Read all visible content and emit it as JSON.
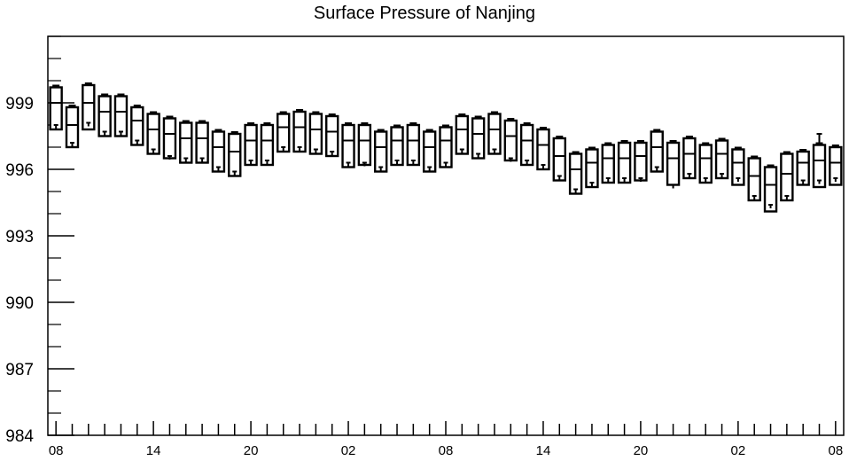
{
  "chart_data": {
    "type": "box",
    "title": "Surface Pressure of Nanjing",
    "xlabel": "",
    "ylabel": "",
    "ylim": [
      984,
      1002
    ],
    "y_ticks": [
      984,
      987,
      990,
      993,
      996,
      999
    ],
    "x_tick_labels": [
      "08",
      "14",
      "20",
      "02",
      "08",
      "14",
      "20",
      "02",
      "08"
    ],
    "x_tick_hours": [
      0,
      6,
      12,
      18,
      24,
      30,
      36,
      42,
      48
    ],
    "x_range": [
      -0.5,
      48.5
    ],
    "grid": false,
    "boxes": [
      {
        "x": 0,
        "upper": 999.7,
        "median": 999.0,
        "lower": 997.8,
        "lowest": 998.0
      },
      {
        "x": 1,
        "upper": 998.8,
        "median": 998.0,
        "lower": 997.0,
        "lowest": 997.2
      },
      {
        "x": 2,
        "upper": 999.8,
        "median": 999.0,
        "lower": 997.8,
        "lowest": 998.1
      },
      {
        "x": 3,
        "upper": 999.3,
        "median": 998.6,
        "lower": 997.5,
        "lowest": 997.7
      },
      {
        "x": 4,
        "upper": 999.3,
        "median": 998.6,
        "lower": 997.5,
        "lowest": 997.7
      },
      {
        "x": 5,
        "upper": 998.8,
        "median": 998.2,
        "lower": 997.1,
        "lowest": 997.3
      },
      {
        "x": 6,
        "upper": 998.5,
        "median": 997.8,
        "lower": 996.7,
        "lowest": 996.9
      },
      {
        "x": 7,
        "upper": 998.3,
        "median": 997.6,
        "lower": 996.5,
        "lowest": 996.6
      },
      {
        "x": 8,
        "upper": 998.1,
        "median": 997.4,
        "lower": 996.3,
        "lowest": 996.5
      },
      {
        "x": 9,
        "upper": 998.1,
        "median": 997.4,
        "lower": 996.3,
        "lowest": 996.5
      },
      {
        "x": 10,
        "upper": 997.7,
        "median": 997.0,
        "lower": 995.9,
        "lowest": 996.1
      },
      {
        "x": 11,
        "upper": 997.6,
        "median": 996.8,
        "lower": 995.7,
        "lowest": 995.9
      },
      {
        "x": 12,
        "upper": 998.0,
        "median": 997.3,
        "lower": 996.2,
        "lowest": 996.4
      },
      {
        "x": 13,
        "upper": 998.0,
        "median": 997.3,
        "lower": 996.2,
        "lowest": 996.4
      },
      {
        "x": 14,
        "upper": 998.5,
        "median": 997.9,
        "lower": 996.8,
        "lowest": 997.0
      },
      {
        "x": 15,
        "upper": 998.6,
        "median": 997.9,
        "lower": 996.8,
        "lowest": 997.0
      },
      {
        "x": 16,
        "upper": 998.5,
        "median": 997.8,
        "lower": 996.7,
        "lowest": 996.9
      },
      {
        "x": 17,
        "upper": 998.4,
        "median": 997.7,
        "lower": 996.6,
        "lowest": 996.8
      },
      {
        "x": 18,
        "upper": 998.0,
        "median": 997.3,
        "lower": 996.1,
        "lowest": 996.3
      },
      {
        "x": 19,
        "upper": 998.0,
        "median": 997.3,
        "lower": 996.2,
        "lowest": 996.3
      },
      {
        "x": 20,
        "upper": 997.7,
        "median": 997.0,
        "lower": 995.9,
        "lowest": 996.1
      },
      {
        "x": 21,
        "upper": 997.9,
        "median": 997.3,
        "lower": 996.2,
        "lowest": 996.4
      },
      {
        "x": 22,
        "upper": 998.0,
        "median": 997.3,
        "lower": 996.2,
        "lowest": 996.4
      },
      {
        "x": 23,
        "upper": 997.7,
        "median": 997.0,
        "lower": 995.9,
        "lowest": 996.1
      },
      {
        "x": 24,
        "upper": 997.9,
        "median": 997.3,
        "lower": 996.1,
        "lowest": 996.3
      },
      {
        "x": 25,
        "upper": 998.4,
        "median": 997.8,
        "lower": 996.7,
        "lowest": 996.9
      },
      {
        "x": 26,
        "upper": 998.3,
        "median": 997.6,
        "lower": 996.5,
        "lowest": 996.7
      },
      {
        "x": 27,
        "upper": 998.5,
        "median": 997.8,
        "lower": 996.7,
        "lowest": 996.9
      },
      {
        "x": 28,
        "upper": 998.2,
        "median": 997.5,
        "lower": 996.4,
        "lowest": 996.5
      },
      {
        "x": 29,
        "upper": 998.0,
        "median": 997.3,
        "lower": 996.2,
        "lowest": 996.4
      },
      {
        "x": 30,
        "upper": 997.8,
        "median": 997.1,
        "lower": 996.0,
        "lowest": 996.2
      },
      {
        "x": 31,
        "upper": 997.4,
        "median": 996.6,
        "lower": 995.5,
        "lowest": 995.7
      },
      {
        "x": 32,
        "upper": 996.7,
        "median": 996.0,
        "lower": 994.9,
        "lowest": 995.1
      },
      {
        "x": 33,
        "upper": 996.9,
        "median": 996.3,
        "lower": 995.2,
        "lowest": 995.4
      },
      {
        "x": 34,
        "upper": 997.1,
        "median": 996.5,
        "lower": 995.4,
        "lowest": 995.6
      },
      {
        "x": 35,
        "upper": 997.2,
        "median": 996.5,
        "lower": 995.4,
        "lowest": 995.6
      },
      {
        "x": 36,
        "upper": 997.2,
        "median": 996.6,
        "lower": 995.5,
        "lowest": 995.6
      },
      {
        "x": 37,
        "upper": 997.7,
        "median": 997.0,
        "lower": 995.9,
        "lowest": 996.1
      },
      {
        "x": 38,
        "upper": 997.2,
        "median": 996.5,
        "lower": 995.3,
        "lowest": 995.3
      },
      {
        "x": 39,
        "upper": 997.4,
        "median": 996.7,
        "lower": 995.6,
        "lowest": 995.8
      },
      {
        "x": 40,
        "upper": 997.1,
        "median": 996.5,
        "lower": 995.4,
        "lowest": 995.6
      },
      {
        "x": 41,
        "upper": 997.3,
        "median": 996.7,
        "lower": 995.6,
        "lowest": 995.8
      },
      {
        "x": 42,
        "upper": 996.9,
        "median": 996.3,
        "lower": 995.3,
        "lowest": 995.6
      },
      {
        "x": 43,
        "upper": 996.5,
        "median": 995.7,
        "lower": 994.6,
        "lowest": 994.8
      },
      {
        "x": 44,
        "upper": 996.1,
        "median": 995.3,
        "lower": 994.1,
        "lowest": 994.4
      },
      {
        "x": 45,
        "upper": 996.7,
        "median": 995.8,
        "lower": 994.6,
        "lowest": 994.8
      },
      {
        "x": 46,
        "upper": 996.8,
        "median": 996.3,
        "lower": 995.3,
        "lowest": 995.5
      },
      {
        "x": 47,
        "upper": 997.1,
        "median": 996.4,
        "lower": 995.2,
        "lowest": 995.5,
        "whisker_high": 997.6
      },
      {
        "x": 48,
        "upper": 997.0,
        "median": 996.3,
        "lower": 995.3,
        "lowest": 995.6
      }
    ]
  }
}
